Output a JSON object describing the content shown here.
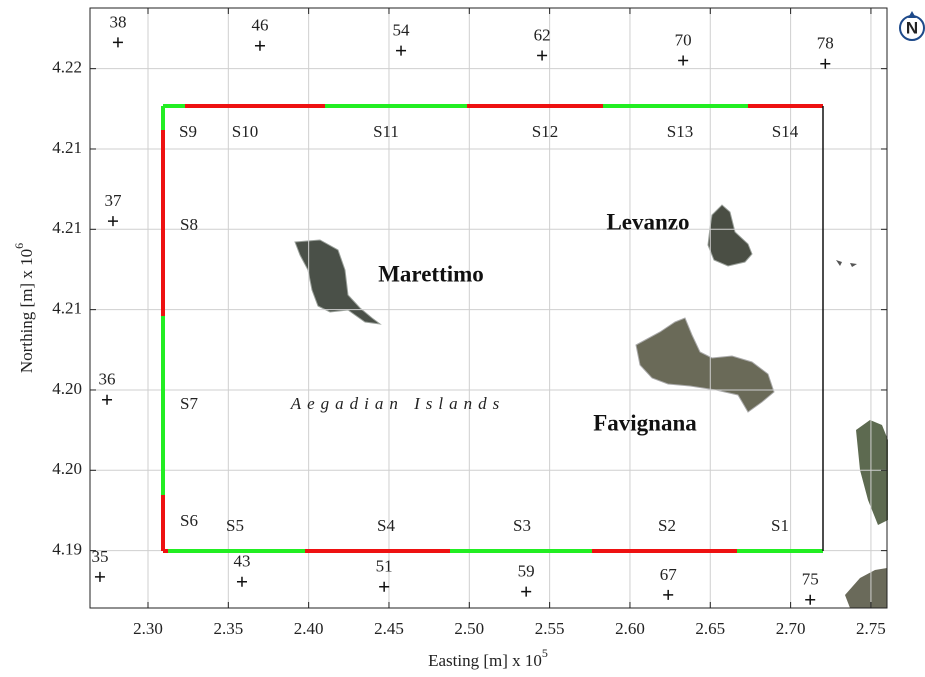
{
  "chart_data": {
    "type": "map",
    "xlabel": "Easting [m] x 10",
    "xlabel_exp": "5",
    "ylabel": "Northing [m] x 10",
    "ylabel_exp": "6",
    "xlim": [
      2.2639,
      2.76
    ],
    "ylim": [
      4.1869,
      4.2235
    ],
    "xticks": [
      {
        "value": 2.3,
        "label": "2.30"
      },
      {
        "value": 2.35,
        "label": "2.35"
      },
      {
        "value": 2.4,
        "label": "2.40"
      },
      {
        "value": 2.45,
        "label": "2.45"
      },
      {
        "value": 2.5,
        "label": "2.50"
      },
      {
        "value": 2.55,
        "label": "2.55"
      },
      {
        "value": 2.6,
        "label": "2.60"
      },
      {
        "value": 2.65,
        "label": "2.65"
      },
      {
        "value": 2.7,
        "label": "2.70"
      },
      {
        "value": 2.75,
        "label": "2.75"
      }
    ],
    "yticks": [
      {
        "value": 4.1904,
        "label": "4.19"
      },
      {
        "value": 4.1953,
        "label": "4.20"
      },
      {
        "value": 4.2002,
        "label": "4.20"
      },
      {
        "value": 4.2051,
        "label": "4.21"
      },
      {
        "value": 4.21,
        "label": "4.21"
      },
      {
        "value": 4.2149,
        "label": "4.21"
      },
      {
        "value": 4.2198,
        "label": "4.22"
      }
    ],
    "grid": true,
    "marker_color": "#111111",
    "stations": [
      {
        "label": "38",
        "x": 2.2813,
        "y": 4.2214
      },
      {
        "label": "46",
        "x": 2.3697,
        "y": 4.2212
      },
      {
        "label": "54",
        "x": 2.4575,
        "y": 4.2209
      },
      {
        "label": "62",
        "x": 2.5453,
        "y": 4.2206
      },
      {
        "label": "70",
        "x": 2.6331,
        "y": 4.2203
      },
      {
        "label": "78",
        "x": 2.7216,
        "y": 4.2201
      },
      {
        "label": "37",
        "x": 2.2782,
        "y": 4.2105
      },
      {
        "label": "36",
        "x": 2.2745,
        "y": 4.1996
      },
      {
        "label": "35",
        "x": 2.2701,
        "y": 4.1888
      },
      {
        "label": "43",
        "x": 2.3585,
        "y": 4.1885
      },
      {
        "label": "51",
        "x": 2.447,
        "y": 4.1882
      },
      {
        "label": "59",
        "x": 2.5354,
        "y": 4.1879
      },
      {
        "label": "67",
        "x": 2.6238,
        "y": 4.1877
      },
      {
        "label": "75",
        "x": 2.7122,
        "y": 4.1874
      }
    ],
    "border_colors": [
      "#ee1111",
      "#22ee22",
      "#111111"
    ],
    "segments": [
      "S1",
      "S2",
      "S3",
      "S4",
      "S5",
      "S6",
      "S7",
      "S8",
      "S9",
      "S10",
      "S11",
      "S12",
      "S13",
      "S14"
    ],
    "islands": [
      "Marettimo",
      "Levanzo",
      "Favignana"
    ],
    "region": "Aegadian Islands"
  }
}
